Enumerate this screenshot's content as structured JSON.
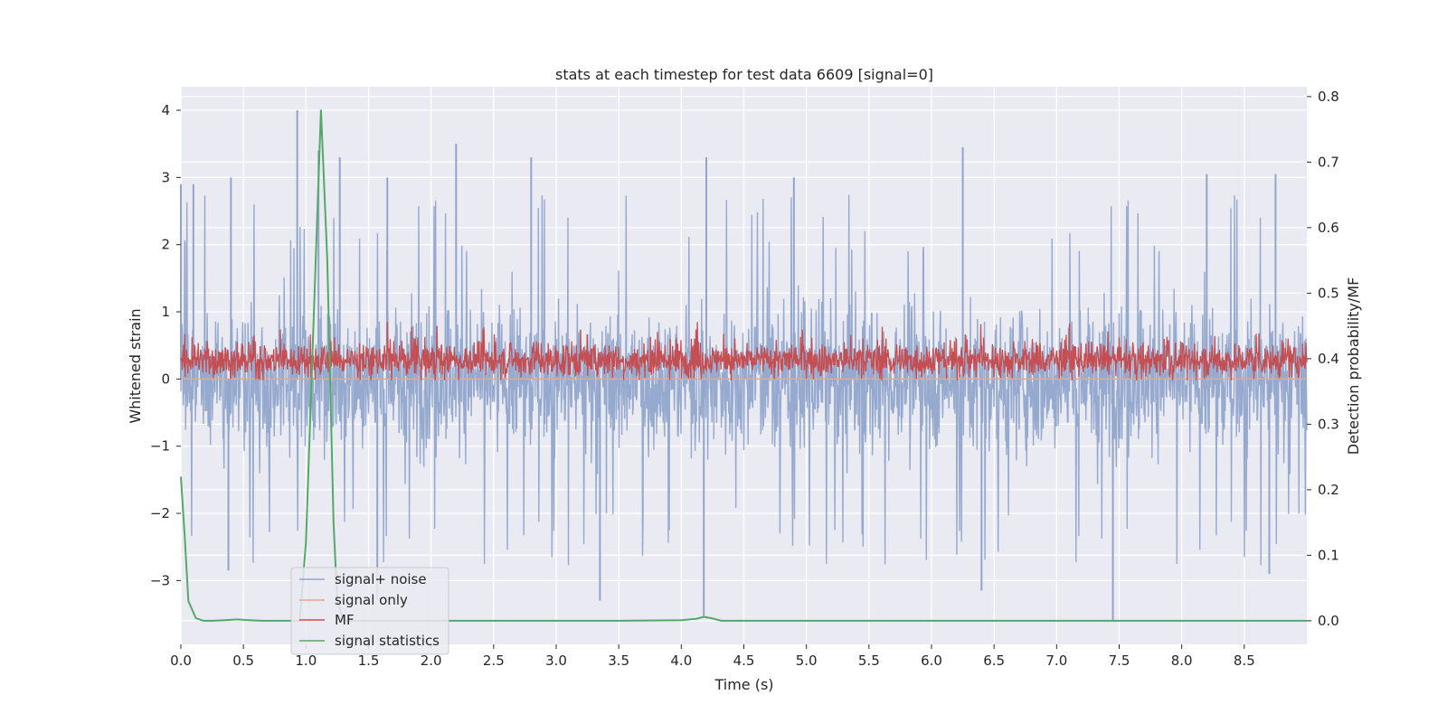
{
  "chart_data": {
    "type": "line",
    "title": "stats at each timestep for test data 6609 [signal=0]",
    "xlabel": "Time (s)",
    "ylabel": "Whitened strain",
    "ylabel_right": "Detection probability/MF",
    "xlim": [
      0.0,
      9.0
    ],
    "ylim": [
      -3.95,
      4.35
    ],
    "ylim_right": [
      -0.036,
      0.815
    ],
    "xticks": [
      0.0,
      0.5,
      1.0,
      1.5,
      2.0,
      2.5,
      3.0,
      3.5,
      4.0,
      4.5,
      5.0,
      5.5,
      6.0,
      6.5,
      7.0,
      7.5,
      8.0,
      8.5
    ],
    "xtick_labels": [
      "0.0",
      "0.5",
      "1.0",
      "1.5",
      "2.0",
      "2.5",
      "3.0",
      "3.5",
      "4.0",
      "4.5",
      "5.0",
      "5.5",
      "6.0",
      "6.5",
      "7.0",
      "7.5",
      "8.0",
      "8.5"
    ],
    "yticks": [
      4,
      3,
      2,
      1,
      0,
      -1,
      -2,
      -3
    ],
    "ytick_labels": [
      "4",
      "3",
      "2",
      "1",
      "0",
      "−1",
      "−2",
      "−3"
    ],
    "yticks_right": [
      0.8,
      0.7,
      0.6,
      0.5,
      0.4,
      0.3,
      0.2,
      0.1,
      0.0
    ],
    "ytick_labels_right": [
      "0.8",
      "0.7",
      "0.6",
      "0.5",
      "0.4",
      "0.3",
      "0.2",
      "0.1",
      "0.0"
    ],
    "grid": true,
    "legend_position": "lower-left",
    "series": [
      {
        "name": "signal+ noise",
        "color": "#91a5cb",
        "axis": "left",
        "style": "dense-noise",
        "typical_range": [
          -1.6,
          1.6
        ],
        "peak_values": [
          {
            "x": 0.0,
            "y": 2.9
          },
          {
            "x": 0.1,
            "y": 2.9
          },
          {
            "x": 0.4,
            "y": 3.0
          },
          {
            "x": 0.93,
            "y": 4.0
          },
          {
            "x": 1.1,
            "y": 3.4
          },
          {
            "x": 1.27,
            "y": 3.3
          },
          {
            "x": 1.65,
            "y": 3.0
          },
          {
            "x": 2.2,
            "y": 3.5
          },
          {
            "x": 2.8,
            "y": 3.3
          },
          {
            "x": 4.2,
            "y": 3.3
          },
          {
            "x": 4.9,
            "y": 3.0
          },
          {
            "x": 6.25,
            "y": 3.45
          },
          {
            "x": 8.2,
            "y": 3.05
          },
          {
            "x": 8.75,
            "y": 3.05
          }
        ],
        "trough_values": [
          {
            "x": 0.38,
            "y": -2.85
          },
          {
            "x": 1.57,
            "y": -3.3
          },
          {
            "x": 3.35,
            "y": -3.3
          },
          {
            "x": 4.18,
            "y": -3.55
          },
          {
            "x": 6.4,
            "y": -3.15
          },
          {
            "x": 7.45,
            "y": -3.6
          },
          {
            "x": 8.7,
            "y": -2.9
          }
        ]
      },
      {
        "name": "signal only",
        "color": "#e5a889",
        "axis": "left",
        "values_note": "zero signal",
        "x": [
          0.0,
          9.0
        ],
        "y": [
          0.0,
          0.0
        ]
      },
      {
        "name": "MF",
        "color": "#c44e52",
        "axis": "left",
        "style": "dense-noise",
        "typical_range": [
          0.0,
          0.6
        ],
        "max": 0.85,
        "min": -0.02
      },
      {
        "name": "signal statistics",
        "color": "#55a868",
        "axis": "right",
        "x": [
          0.0,
          0.03,
          0.06,
          0.12,
          0.18,
          0.25,
          0.35,
          0.45,
          0.55,
          0.65,
          0.8,
          0.95,
          1.0,
          1.05,
          1.12,
          1.17,
          1.22,
          1.25,
          1.3,
          1.4,
          1.6,
          2.0,
          2.5,
          3.0,
          3.5,
          4.0,
          4.12,
          4.18,
          4.24,
          4.32,
          4.5,
          5.0,
          6.0,
          7.0,
          7.5,
          8.0,
          8.5,
          9.0
        ],
        "y": [
          0.22,
          0.13,
          0.03,
          0.004,
          0.0,
          0.0,
          0.001,
          0.002,
          0.001,
          0.0,
          0.0,
          0.0,
          0.12,
          0.4,
          0.78,
          0.55,
          0.15,
          0.03,
          0.0,
          0.0,
          0.0,
          0.0,
          0.0,
          0.0,
          0.0,
          0.001,
          0.003,
          0.006,
          0.004,
          0.0,
          0.0,
          0.0,
          0.0,
          0.0,
          0.0,
          0.0,
          0.0,
          0.0
        ]
      }
    ]
  }
}
